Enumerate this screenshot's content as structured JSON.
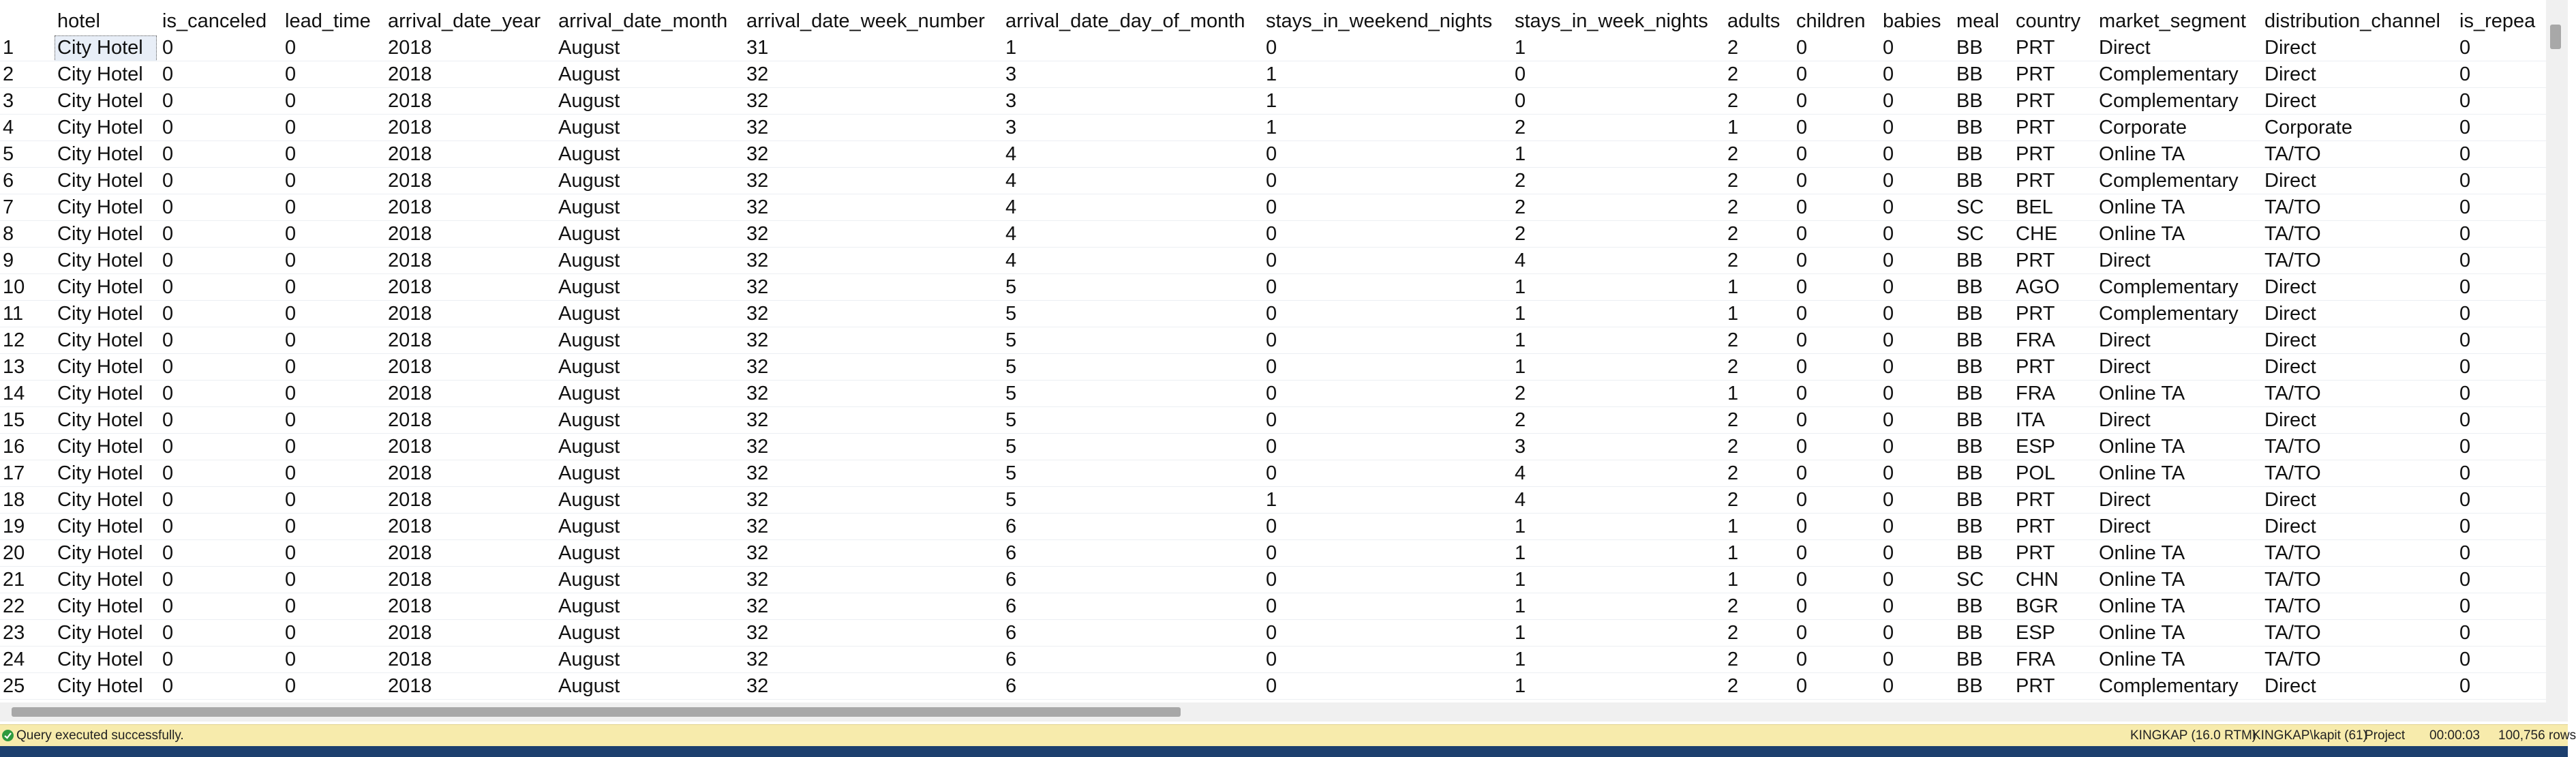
{
  "table": {
    "columns": [
      "",
      "hotel",
      "is_canceled",
      "lead_time",
      "arrival_date_year",
      "arrival_date_month",
      "arrival_date_week_number",
      "arrival_date_day_of_month",
      "stays_in_weekend_nights",
      "stays_in_week_nights",
      "adults",
      "children",
      "babies",
      "meal",
      "country",
      "market_segment",
      "distribution_channel",
      "is_repea"
    ],
    "rows": [
      [
        "1",
        "City Hotel",
        "0",
        "0",
        "2018",
        "August",
        "31",
        "1",
        "0",
        "1",
        "2",
        "0",
        "0",
        "BB",
        "PRT",
        "Direct",
        "Direct",
        "0"
      ],
      [
        "2",
        "City Hotel",
        "0",
        "0",
        "2018",
        "August",
        "32",
        "3",
        "1",
        "0",
        "2",
        "0",
        "0",
        "BB",
        "PRT",
        "Complementary",
        "Direct",
        "0"
      ],
      [
        "3",
        "City Hotel",
        "0",
        "0",
        "2018",
        "August",
        "32",
        "3",
        "1",
        "0",
        "2",
        "0",
        "0",
        "BB",
        "PRT",
        "Complementary",
        "Direct",
        "0"
      ],
      [
        "4",
        "City Hotel",
        "0",
        "0",
        "2018",
        "August",
        "32",
        "3",
        "1",
        "2",
        "1",
        "0",
        "0",
        "BB",
        "PRT",
        "Corporate",
        "Corporate",
        "0"
      ],
      [
        "5",
        "City Hotel",
        "0",
        "0",
        "2018",
        "August",
        "32",
        "4",
        "0",
        "1",
        "2",
        "0",
        "0",
        "BB",
        "PRT",
        "Online TA",
        "TA/TO",
        "0"
      ],
      [
        "6",
        "City Hotel",
        "0",
        "0",
        "2018",
        "August",
        "32",
        "4",
        "0",
        "2",
        "2",
        "0",
        "0",
        "BB",
        "PRT",
        "Complementary",
        "Direct",
        "0"
      ],
      [
        "7",
        "City Hotel",
        "0",
        "0",
        "2018",
        "August",
        "32",
        "4",
        "0",
        "2",
        "2",
        "0",
        "0",
        "SC",
        "BEL",
        "Online TA",
        "TA/TO",
        "0"
      ],
      [
        "8",
        "City Hotel",
        "0",
        "0",
        "2018",
        "August",
        "32",
        "4",
        "0",
        "2",
        "2",
        "0",
        "0",
        "SC",
        "CHE",
        "Online TA",
        "TA/TO",
        "0"
      ],
      [
        "9",
        "City Hotel",
        "0",
        "0",
        "2018",
        "August",
        "32",
        "4",
        "0",
        "4",
        "2",
        "0",
        "0",
        "BB",
        "PRT",
        "Direct",
        "TA/TO",
        "0"
      ],
      [
        "10",
        "City Hotel",
        "0",
        "0",
        "2018",
        "August",
        "32",
        "5",
        "0",
        "1",
        "1",
        "0",
        "0",
        "BB",
        "AGO",
        "Complementary",
        "Direct",
        "0"
      ],
      [
        "11",
        "City Hotel",
        "0",
        "0",
        "2018",
        "August",
        "32",
        "5",
        "0",
        "1",
        "1",
        "0",
        "0",
        "BB",
        "PRT",
        "Complementary",
        "Direct",
        "0"
      ],
      [
        "12",
        "City Hotel",
        "0",
        "0",
        "2018",
        "August",
        "32",
        "5",
        "0",
        "1",
        "2",
        "0",
        "0",
        "BB",
        "FRA",
        "Direct",
        "Direct",
        "0"
      ],
      [
        "13",
        "City Hotel",
        "0",
        "0",
        "2018",
        "August",
        "32",
        "5",
        "0",
        "1",
        "2",
        "0",
        "0",
        "BB",
        "PRT",
        "Direct",
        "Direct",
        "0"
      ],
      [
        "14",
        "City Hotel",
        "0",
        "0",
        "2018",
        "August",
        "32",
        "5",
        "0",
        "2",
        "1",
        "0",
        "0",
        "BB",
        "FRA",
        "Online TA",
        "TA/TO",
        "0"
      ],
      [
        "15",
        "City Hotel",
        "0",
        "0",
        "2018",
        "August",
        "32",
        "5",
        "0",
        "2",
        "2",
        "0",
        "0",
        "BB",
        "ITA",
        "Direct",
        "Direct",
        "0"
      ],
      [
        "16",
        "City Hotel",
        "0",
        "0",
        "2018",
        "August",
        "32",
        "5",
        "0",
        "3",
        "2",
        "0",
        "0",
        "BB",
        "ESP",
        "Online TA",
        "TA/TO",
        "0"
      ],
      [
        "17",
        "City Hotel",
        "0",
        "0",
        "2018",
        "August",
        "32",
        "5",
        "0",
        "4",
        "2",
        "0",
        "0",
        "BB",
        "POL",
        "Online TA",
        "TA/TO",
        "0"
      ],
      [
        "18",
        "City Hotel",
        "0",
        "0",
        "2018",
        "August",
        "32",
        "5",
        "1",
        "4",
        "2",
        "0",
        "0",
        "BB",
        "PRT",
        "Direct",
        "Direct",
        "0"
      ],
      [
        "19",
        "City Hotel",
        "0",
        "0",
        "2018",
        "August",
        "32",
        "6",
        "0",
        "1",
        "1",
        "0",
        "0",
        "BB",
        "PRT",
        "Direct",
        "Direct",
        "0"
      ],
      [
        "20",
        "City Hotel",
        "0",
        "0",
        "2018",
        "August",
        "32",
        "6",
        "0",
        "1",
        "1",
        "0",
        "0",
        "BB",
        "PRT",
        "Online TA",
        "TA/TO",
        "0"
      ],
      [
        "21",
        "City Hotel",
        "0",
        "0",
        "2018",
        "August",
        "32",
        "6",
        "0",
        "1",
        "1",
        "0",
        "0",
        "SC",
        "CHN",
        "Online TA",
        "TA/TO",
        "0"
      ],
      [
        "22",
        "City Hotel",
        "0",
        "0",
        "2018",
        "August",
        "32",
        "6",
        "0",
        "1",
        "2",
        "0",
        "0",
        "BB",
        "BGR",
        "Online TA",
        "TA/TO",
        "0"
      ],
      [
        "23",
        "City Hotel",
        "0",
        "0",
        "2018",
        "August",
        "32",
        "6",
        "0",
        "1",
        "2",
        "0",
        "0",
        "BB",
        "ESP",
        "Online TA",
        "TA/TO",
        "0"
      ],
      [
        "24",
        "City Hotel",
        "0",
        "0",
        "2018",
        "August",
        "32",
        "6",
        "0",
        "1",
        "2",
        "0",
        "0",
        "BB",
        "FRA",
        "Online TA",
        "TA/TO",
        "0"
      ],
      [
        "25",
        "City Hotel",
        "0",
        "0",
        "2018",
        "August",
        "32",
        "6",
        "0",
        "1",
        "2",
        "0",
        "0",
        "BB",
        "PRT",
        "Complementary",
        "Direct",
        "0"
      ]
    ]
  },
  "status": {
    "message": "Query executed successfully.",
    "server": "KINGKAP (16.0 RTM)",
    "user": "KINGKAP\\kapit (61)",
    "database": "Project",
    "elapsed": "00:00:03",
    "row_count": "100,756 rows"
  }
}
